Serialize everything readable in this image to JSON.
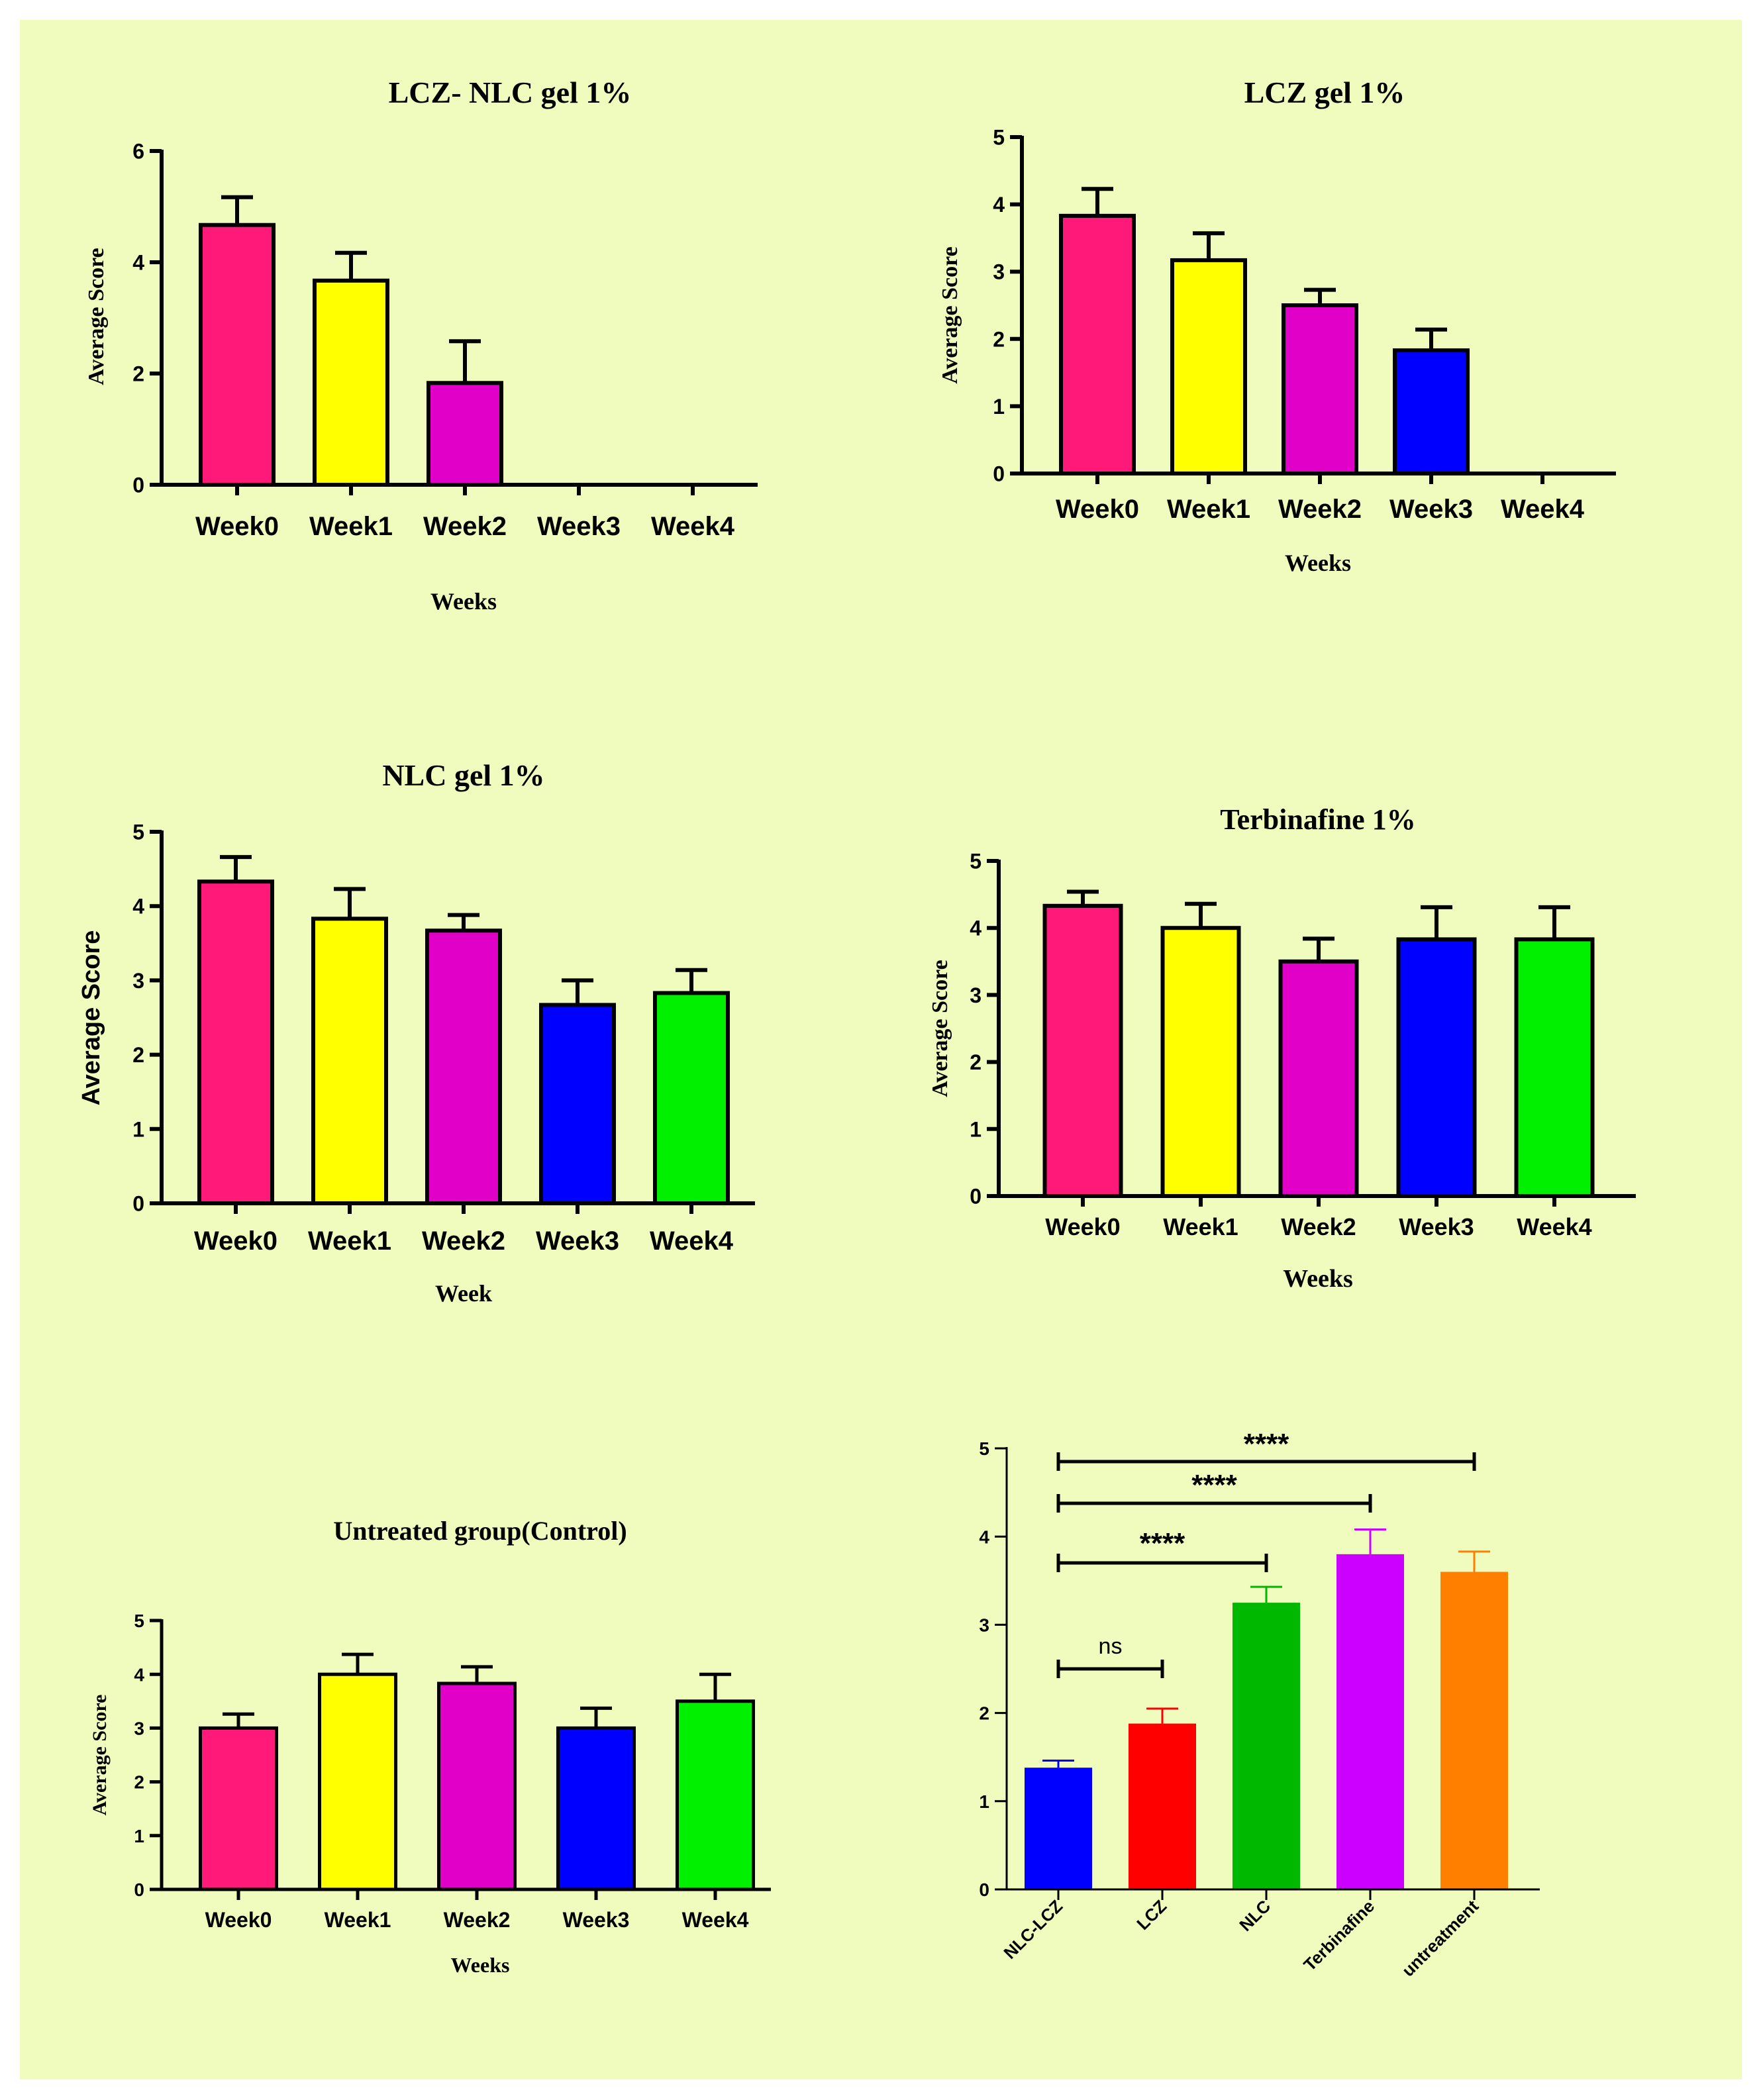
{
  "colors": {
    "background": "#f0fbbe",
    "pink": "#ff1a7a",
    "yellow": "#ffff00",
    "magenta": "#e000c8",
    "blue": "#0000ff",
    "green": "#00f000",
    "red": "#ff0000",
    "dark_green": "#00b800",
    "violet": "#cc00ff",
    "orange": "#ff8000"
  },
  "chart_data": [
    {
      "type": "bar",
      "title": "LCZ- NLC gel 1%",
      "xlabel": "Weeks",
      "ylabel": "Average Score",
      "categories": [
        "Week0",
        "Week1",
        "Week2",
        "Week3",
        "Week4"
      ],
      "values": [
        4.67,
        3.67,
        1.83,
        0,
        0
      ],
      "errors": [
        0.5,
        0.5,
        0.75,
        0,
        0
      ],
      "ylim": [
        0,
        6
      ],
      "yticks": [
        "0",
        "2",
        "4",
        "6"
      ],
      "bar_colors": [
        "#ff1a7a",
        "#ffff00",
        "#e000c8",
        "#0000ff",
        "#00f000"
      ]
    },
    {
      "type": "bar",
      "title": "LCZ gel 1%",
      "xlabel": "Weeks",
      "ylabel": "Average Score",
      "categories": [
        "Week0",
        "Week1",
        "Week2",
        "Week3",
        "Week4"
      ],
      "values": [
        3.83,
        3.17,
        2.5,
        1.83,
        0
      ],
      "errors": [
        0.4,
        0.4,
        0.23,
        0.31,
        0
      ],
      "ylim": [
        0,
        5
      ],
      "yticks": [
        "0",
        "1",
        "2",
        "3",
        "4",
        "5"
      ],
      "bar_colors": [
        "#ff1a7a",
        "#ffff00",
        "#e000c8",
        "#0000ff",
        "#00f000"
      ]
    },
    {
      "type": "bar",
      "title": "NLC gel 1%",
      "xlabel": "Week",
      "ylabel": "Average Score",
      "categories": [
        "Week0",
        "Week1",
        "Week2",
        "Week3",
        "Week4"
      ],
      "values": [
        4.33,
        3.83,
        3.67,
        2.67,
        2.83
      ],
      "errors": [
        0.33,
        0.4,
        0.21,
        0.33,
        0.31
      ],
      "ylim": [
        0,
        5
      ],
      "yticks": [
        "0",
        "1",
        "2",
        "3",
        "4",
        "5"
      ],
      "bar_colors": [
        "#ff1a7a",
        "#ffff00",
        "#e000c8",
        "#0000ff",
        "#00f000"
      ]
    },
    {
      "type": "bar",
      "title": "Terbinafine 1%",
      "xlabel": "Weeks",
      "ylabel": "Average Score",
      "categories": [
        "Week0",
        "Week1",
        "Week2",
        "Week3",
        "Week4"
      ],
      "values": [
        4.33,
        4.0,
        3.5,
        3.83,
        3.83
      ],
      "errors": [
        0.21,
        0.36,
        0.34,
        0.48,
        0.48
      ],
      "ylim": [
        0,
        5
      ],
      "yticks": [
        "0",
        "1",
        "2",
        "3",
        "4",
        "5"
      ],
      "bar_colors": [
        "#ff1a7a",
        "#ffff00",
        "#e000c8",
        "#0000ff",
        "#00f000"
      ]
    },
    {
      "type": "bar",
      "title": "Untreated group(Control)",
      "xlabel": "Weeks",
      "ylabel": "Average Score",
      "categories": [
        "Week0",
        "Week1",
        "Week2",
        "Week3",
        "Week4"
      ],
      "values": [
        3.0,
        4.0,
        3.83,
        3.0,
        3.5
      ],
      "errors": [
        0.26,
        0.37,
        0.31,
        0.37,
        0.5
      ],
      "ylim": [
        0,
        5
      ],
      "yticks": [
        "0",
        "1",
        "2",
        "3",
        "4",
        "5"
      ],
      "bar_colors": [
        "#ff1a7a",
        "#ffff00",
        "#e000c8",
        "#0000ff",
        "#00f000"
      ]
    },
    {
      "type": "bar",
      "title": "",
      "xlabel": "",
      "ylabel": "",
      "categories": [
        "NLC-LCZ",
        "LCZ",
        "NLC",
        "Terbinafine",
        "untreatment"
      ],
      "values": [
        1.38,
        1.88,
        3.25,
        3.8,
        3.6
      ],
      "errors": [
        0.08,
        0.17,
        0.18,
        0.28,
        0.23
      ],
      "ylim": [
        0,
        5
      ],
      "yticks": [
        "0",
        "1",
        "2",
        "3",
        "4",
        "5"
      ],
      "bar_colors": [
        "#0000ff",
        "#ff0000",
        "#00b800",
        "#cc00ff",
        "#ff8000"
      ],
      "comparisons": [
        {
          "from": "NLC-LCZ",
          "to": "LCZ",
          "label": "ns"
        },
        {
          "from": "NLC-LCZ",
          "to": "NLC",
          "label": "****"
        },
        {
          "from": "NLC-LCZ",
          "to": "Terbinafine",
          "label": "****"
        },
        {
          "from": "NLC-LCZ",
          "to": "untreatment",
          "label": "****"
        }
      ]
    }
  ]
}
